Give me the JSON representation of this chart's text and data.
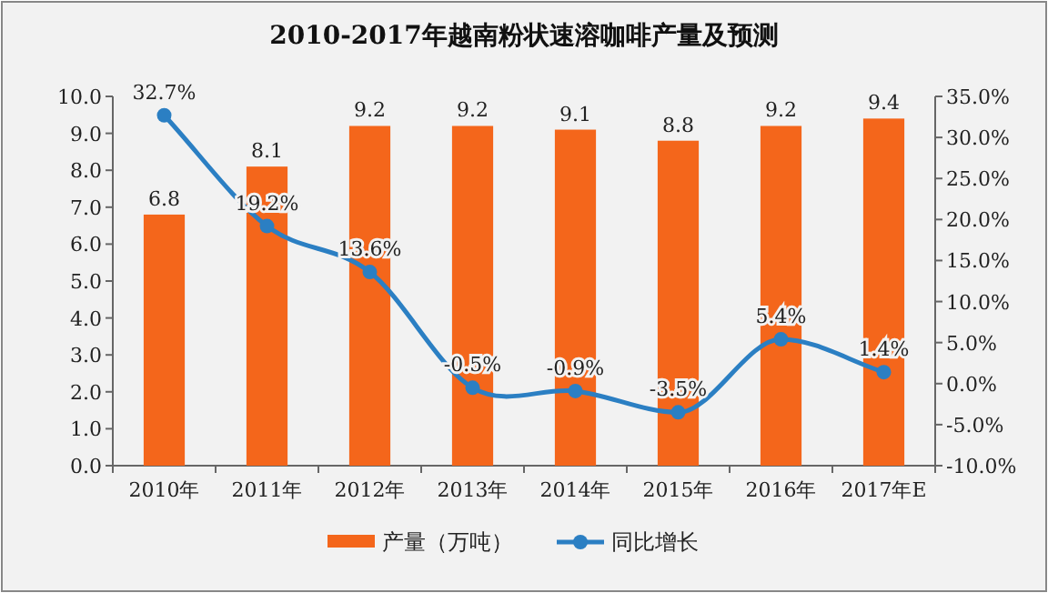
{
  "chart_data": {
    "type": "bar",
    "title": "2010-2017年越南粉状速溶咖啡产量及预测",
    "categories": [
      "2010年",
      "2011年",
      "2012年",
      "2013年",
      "2014年",
      "2015年",
      "2016年",
      "2017年E"
    ],
    "series": [
      {
        "name": "产量（万吨）",
        "color": "#f4661b",
        "values": [
          6.8,
          8.1,
          9.2,
          9.2,
          9.1,
          8.8,
          9.2,
          9.4
        ],
        "value_labels": [
          "6.8",
          "8.1",
          "9.2",
          "9.2",
          "9.1",
          "8.8",
          "9.2",
          "9.4"
        ]
      },
      {
        "name": "同比增长",
        "type": "line",
        "axis": "y2",
        "color": "#2b7fc3",
        "marker": "circle",
        "values": [
          32.7,
          19.2,
          13.6,
          -0.5,
          -0.9,
          -3.5,
          5.4,
          1.4
        ],
        "value_labels": [
          "32.7%",
          "19.2%",
          "13.6%",
          "-0.5%",
          "-0.9%",
          "-3.5%",
          "5.4%",
          "1.4%"
        ]
      }
    ],
    "ylim": [
      0,
      10
    ],
    "yticks": [
      {
        "value": 0,
        "label": "0.0"
      },
      {
        "value": 1,
        "label": "1.0"
      },
      {
        "value": 2,
        "label": "2.0"
      },
      {
        "value": 3,
        "label": "3.0"
      },
      {
        "value": 4,
        "label": "4.0"
      },
      {
        "value": 5,
        "label": "5.0"
      },
      {
        "value": 6,
        "label": "6.0"
      },
      {
        "value": 7,
        "label": "7.0"
      },
      {
        "value": 8,
        "label": "8.0"
      },
      {
        "value": 9,
        "label": "9.0"
      },
      {
        "value": 10,
        "label": "10.0"
      }
    ],
    "y2lim": [
      -10,
      35
    ],
    "y2ticks": [
      {
        "value": -10,
        "label": "-10.0%"
      },
      {
        "value": -5,
        "label": "-5.0%"
      },
      {
        "value": 0,
        "label": "0.0%"
      },
      {
        "value": 5,
        "label": "5.0%"
      },
      {
        "value": 10,
        "label": "10.0%"
      },
      {
        "value": 15,
        "label": "15.0%"
      },
      {
        "value": 20,
        "label": "20.0%"
      },
      {
        "value": 25,
        "label": "25.0%"
      },
      {
        "value": 30,
        "label": "30.0%"
      },
      {
        "value": 35,
        "label": "35.0%"
      }
    ],
    "grid": false,
    "legend": "bottom"
  }
}
